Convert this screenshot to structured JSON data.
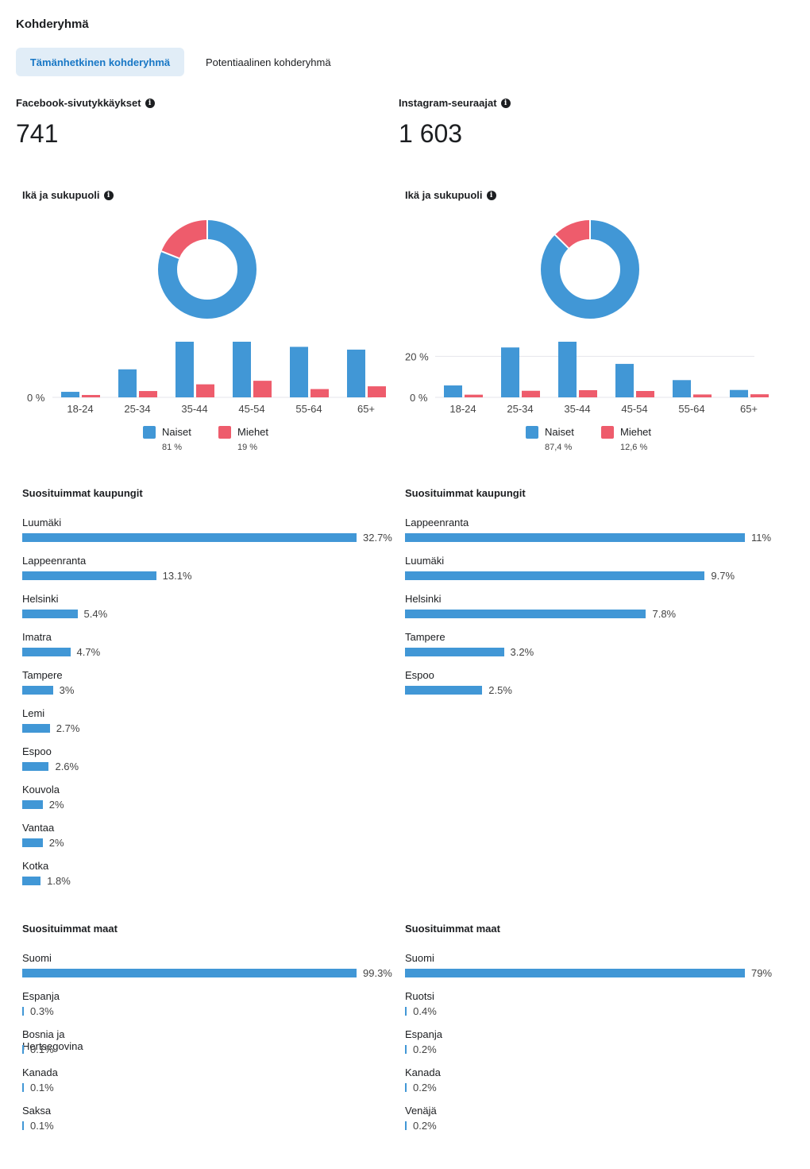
{
  "page": {
    "title": "Kohderyhmä"
  },
  "tabs": [
    {
      "label": "Tämänhetkinen kohderyhmä",
      "active": true
    },
    {
      "label": "Potentiaalinen kohderyhmä",
      "active": false
    }
  ],
  "icons": {
    "info": "info-icon"
  },
  "colors": {
    "women": "#4197d6",
    "men": "#ee5c6c",
    "accent": "#1877c5",
    "tab_bg": "#e1edf7"
  },
  "facebook": {
    "metric_label": "Facebook-sivutykkäykset",
    "metric_value": "741",
    "age_gender_title": "Ikä ja sukupuoli",
    "donut": {
      "women_fraction": 0.81,
      "men_fraction": 0.19
    },
    "legend": [
      {
        "name": "Naiset",
        "pct": "81 %"
      },
      {
        "name": "Miehet",
        "pct": "19 %"
      }
    ],
    "cities_title": "Suosituimmat kaupungit",
    "cities": [
      {
        "name": "Luumäki",
        "value": "32.7%"
      },
      {
        "name": "Lappeenranta",
        "value": "13.1%"
      },
      {
        "name": "Helsinki",
        "value": "5.4%"
      },
      {
        "name": "Imatra",
        "value": "4.7%"
      },
      {
        "name": "Tampere",
        "value": "3%"
      },
      {
        "name": "Lemi",
        "value": "2.7%"
      },
      {
        "name": "Espoo",
        "value": "2.6%"
      },
      {
        "name": "Kouvola",
        "value": "2%"
      },
      {
        "name": "Vantaa",
        "value": "2%"
      },
      {
        "name": "Kotka",
        "value": "1.8%"
      }
    ],
    "countries_title": "Suosituimmat maat",
    "countries": [
      {
        "name": "Suomi",
        "value": "99.3%"
      },
      {
        "name": "Espanja",
        "value": "0.3%"
      },
      {
        "name": "Bosnia ja Hertsegovina",
        "value": "0.1%"
      },
      {
        "name": "Kanada",
        "value": "0.1%"
      },
      {
        "name": "Saksa",
        "value": "0.1%"
      }
    ]
  },
  "instagram": {
    "metric_label": "Instagram-seuraajat",
    "metric_value": "1 603",
    "age_gender_title": "Ikä ja sukupuoli",
    "donut": {
      "women_fraction": 0.874,
      "men_fraction": 0.126
    },
    "legend": [
      {
        "name": "Naiset",
        "pct": "87,4 %"
      },
      {
        "name": "Miehet",
        "pct": "12,6 %"
      }
    ],
    "cities_title": "Suosituimmat kaupungit",
    "cities": [
      {
        "name": "Lappeenranta",
        "value": "11%"
      },
      {
        "name": "Luumäki",
        "value": "9.7%"
      },
      {
        "name": "Helsinki",
        "value": "7.8%"
      },
      {
        "name": "Tampere",
        "value": "3.2%"
      },
      {
        "name": "Espoo",
        "value": "2.5%"
      }
    ],
    "countries_title": "Suosituimmat maat",
    "countries": [
      {
        "name": "Suomi",
        "value": "79%"
      },
      {
        "name": "Ruotsi",
        "value": "0.4%"
      },
      {
        "name": "Espanja",
        "value": "0.2%"
      },
      {
        "name": "Kanada",
        "value": "0.2%"
      },
      {
        "name": "Venäjä",
        "value": "0.2%"
      }
    ]
  },
  "chart_data": [
    {
      "type": "bar",
      "categories": [
        "18-24",
        "25-34",
        "35-44",
        "45-54",
        "55-64",
        "65+"
      ],
      "series": [
        {
          "name": "Naiset",
          "values": [
            1.4,
            7.1,
            14.1,
            14.1,
            12.8,
            12.1
          ]
        },
        {
          "name": "Miehet",
          "values": [
            0.6,
            1.6,
            3.3,
            4.2,
            2.1,
            2.8
          ]
        }
      ],
      "yticks": [
        "0 %"
      ],
      "ylim": [
        0,
        14.1
      ],
      "grid": false
    },
    {
      "type": "bar",
      "categories": [
        "18-24",
        "25-34",
        "35-44",
        "45-54",
        "55-64",
        "65+"
      ],
      "series": [
        {
          "name": "Naiset",
          "values": [
            5.8,
            24.3,
            27.1,
            16.3,
            8.4,
            3.6
          ]
        },
        {
          "name": "Miehet",
          "values": [
            1.3,
            3.2,
            3.5,
            3.1,
            1.4,
            1.5
          ]
        }
      ],
      "yticks": [
        "0 %",
        "20 %"
      ],
      "ylim": [
        0,
        27.1
      ],
      "grid": true
    }
  ]
}
